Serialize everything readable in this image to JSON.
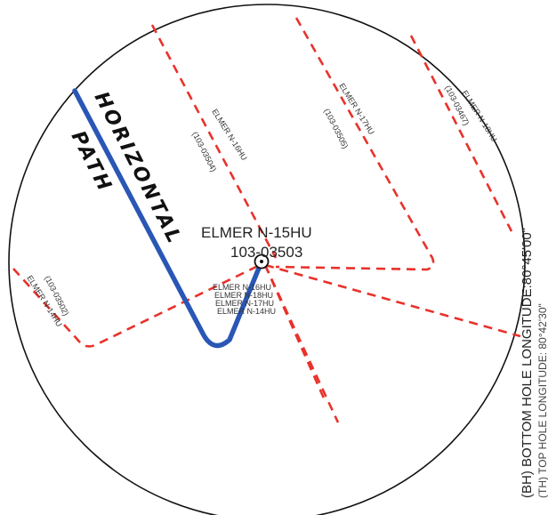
{
  "well": {
    "name": "ELMER N-15HU",
    "api": "103-03503"
  },
  "horizontal_path": {
    "line1": "HORIZONTAL",
    "line2": "PATH"
  },
  "laterals": [
    {
      "name": "ELMER N-16HU",
      "api": "(103-03504)"
    },
    {
      "name": "ELMER N-17HU",
      "api": "(103-03505)"
    },
    {
      "name": "ELMER N-18HU",
      "api": "(103-03467)"
    },
    {
      "name": "ELMER N-14HU",
      "api": "(103-03502)"
    }
  ],
  "stacked_labels": [
    "ELMER N-16HU",
    "ELMER N-18HU",
    "ELMER N-17HU",
    "ELMER N-14HU"
  ],
  "side_text": {
    "bottom_hole": "(BH) BOTTOM HOLE LONGITUDE:80°45'00\"",
    "top_hole": "(TH) TOP HOLE LONGITUDE: 80°42'30\""
  },
  "colors": {
    "lateral": "#e8322b",
    "horizontal_path": "#2a57b5"
  }
}
